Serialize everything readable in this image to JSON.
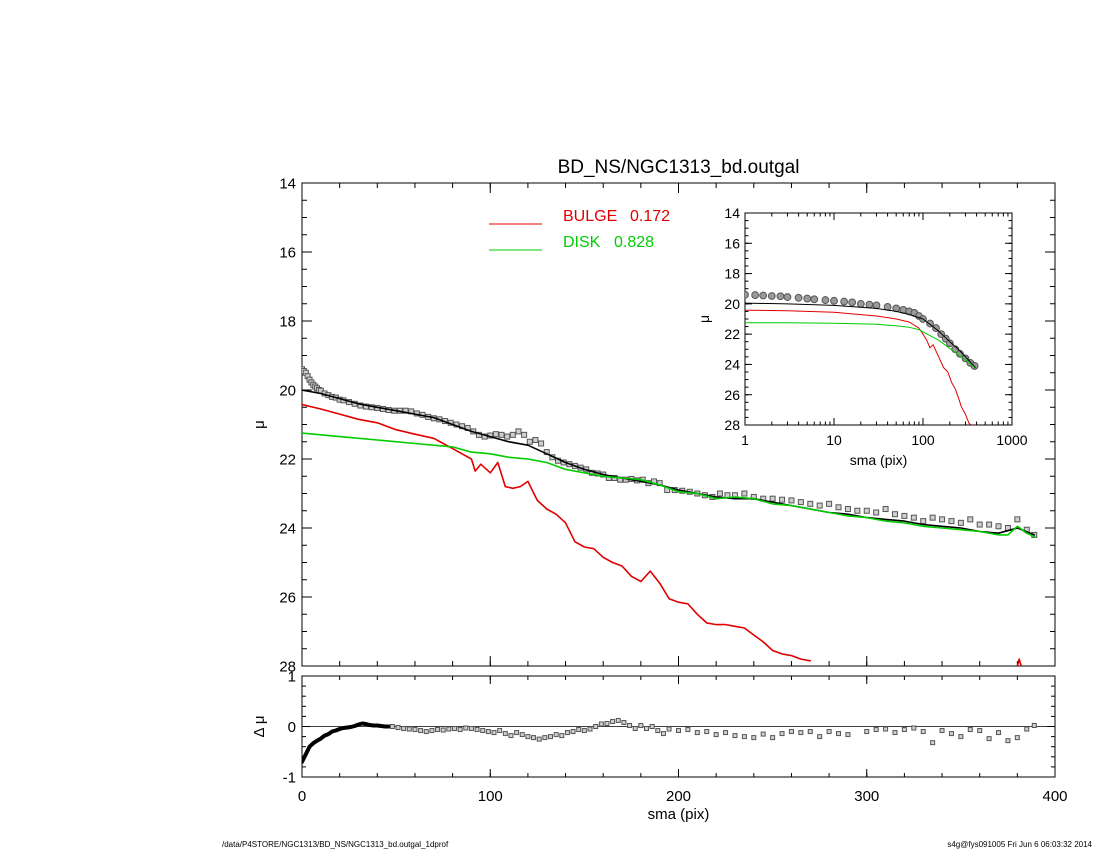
{
  "chart_data": [
    {
      "name": "main",
      "type": "line",
      "title": "BD_NS/NGC1313_bd.outgal",
      "xlabel": "",
      "ylabel": "μ",
      "xlim": [
        0,
        400
      ],
      "ylim": [
        28,
        14
      ],
      "y_inverted": true,
      "xticks": [
        0,
        100,
        200,
        300,
        400
      ],
      "yticks": [
        14,
        16,
        18,
        20,
        22,
        24,
        26,
        28
      ],
      "legend": [
        {
          "label": "BULGE",
          "value": "0.172",
          "color": "#e00000"
        },
        {
          "label": "DISK",
          "value": "0.828",
          "color": "#00cc00"
        }
      ],
      "series": [
        {
          "name": "observed",
          "style": "squares",
          "color": "#555555",
          "x": [
            0,
            1,
            2,
            3,
            4,
            5,
            6,
            7,
            8,
            9,
            10,
            12,
            14,
            16,
            18,
            20,
            22,
            25,
            28,
            31,
            34,
            37,
            40,
            43,
            46,
            49,
            52,
            55,
            58,
            61,
            64,
            67,
            70,
            73,
            76,
            79,
            82,
            85,
            88,
            91,
            94,
            97,
            100,
            103,
            106,
            109,
            112,
            115,
            118,
            121,
            124,
            127,
            130,
            133,
            136,
            139,
            142,
            145,
            148,
            151,
            154,
            157,
            160,
            163,
            166,
            169,
            172,
            175,
            178,
            181,
            184,
            187,
            190,
            194,
            198,
            202,
            206,
            210,
            214,
            218,
            222,
            226,
            230,
            235,
            240,
            245,
            250,
            255,
            260,
            265,
            270,
            275,
            280,
            285,
            290,
            295,
            300,
            305,
            310,
            315,
            320,
            325,
            330,
            335,
            340,
            345,
            350,
            355,
            360,
            365,
            370,
            375,
            380,
            385,
            389
          ],
          "y": [
            19.4,
            19.45,
            19.5,
            19.6,
            19.7,
            19.78,
            19.85,
            19.9,
            19.95,
            20.0,
            20.02,
            20.1,
            20.15,
            20.2,
            20.22,
            20.28,
            20.3,
            20.35,
            20.4,
            20.45,
            20.48,
            20.5,
            20.52,
            20.55,
            20.58,
            20.6,
            20.6,
            20.6,
            20.62,
            20.68,
            20.72,
            20.78,
            20.82,
            20.85,
            20.9,
            20.95,
            21.0,
            21.05,
            21.1,
            21.2,
            21.3,
            21.35,
            21.32,
            21.28,
            21.3,
            21.35,
            21.3,
            21.2,
            21.3,
            21.5,
            21.45,
            21.55,
            21.8,
            21.95,
            22.05,
            22.1,
            22.15,
            22.2,
            22.25,
            22.3,
            22.4,
            22.42,
            22.45,
            22.55,
            22.55,
            22.6,
            22.6,
            22.58,
            22.62,
            22.6,
            22.7,
            22.65,
            22.7,
            22.9,
            22.9,
            22.92,
            22.95,
            23.0,
            23.05,
            23.1,
            23.0,
            23.05,
            23.05,
            23.0,
            23.1,
            23.15,
            23.15,
            23.18,
            23.2,
            23.25,
            23.3,
            23.35,
            23.3,
            23.4,
            23.45,
            23.5,
            23.5,
            23.55,
            23.45,
            23.6,
            23.65,
            23.7,
            23.8,
            23.7,
            23.75,
            23.8,
            23.85,
            23.75,
            23.9,
            23.9,
            23.95,
            24.0,
            23.75,
            24.05,
            24.2
          ]
        },
        {
          "name": "model_total",
          "style": "line",
          "color": "#000000",
          "x": [
            0,
            10,
            20,
            30,
            40,
            50,
            60,
            70,
            80,
            90,
            100,
            110,
            120,
            130,
            140,
            150,
            160,
            170,
            180,
            190,
            200,
            210,
            220,
            230,
            240,
            250,
            260,
            270,
            280,
            290,
            300,
            310,
            320,
            330,
            340,
            350,
            360,
            370,
            380,
            389
          ],
          "y": [
            20.0,
            20.1,
            20.25,
            20.4,
            20.5,
            20.6,
            20.7,
            20.8,
            21.0,
            21.2,
            21.35,
            21.5,
            21.6,
            21.85,
            22.1,
            22.3,
            22.45,
            22.55,
            22.65,
            22.75,
            22.9,
            23.0,
            23.1,
            23.15,
            23.15,
            23.25,
            23.35,
            23.45,
            23.55,
            23.6,
            23.7,
            23.75,
            23.8,
            23.9,
            23.95,
            24.0,
            24.1,
            24.15,
            24.0,
            24.2
          ]
        },
        {
          "name": "bulge",
          "style": "line",
          "color": "#e00000",
          "x": [
            0,
            10,
            20,
            30,
            40,
            50,
            60,
            70,
            75,
            80,
            85,
            90,
            92,
            95,
            100,
            104,
            108,
            112,
            116,
            120,
            125,
            130,
            135,
            140,
            145,
            150,
            155,
            160,
            165,
            170,
            175,
            180,
            185,
            190,
            195,
            200,
            205,
            210,
            215,
            220,
            225,
            230,
            235,
            240,
            245,
            250,
            255,
            260,
            265,
            270
          ],
          "y": [
            20.42,
            20.55,
            20.7,
            20.85,
            20.95,
            21.15,
            21.28,
            21.4,
            21.55,
            21.7,
            21.85,
            22.0,
            22.35,
            22.15,
            22.4,
            22.1,
            22.8,
            22.85,
            22.8,
            22.65,
            23.2,
            23.45,
            23.6,
            23.85,
            24.4,
            24.55,
            24.6,
            24.85,
            25.0,
            25.1,
            25.4,
            25.55,
            25.25,
            25.6,
            26.05,
            26.15,
            26.2,
            26.5,
            26.75,
            26.8,
            26.8,
            26.85,
            26.9,
            27.1,
            27.3,
            27.55,
            27.65,
            27.7,
            27.8,
            27.85
          ]
        },
        {
          "name": "bulge_tail",
          "style": "line",
          "color": "#e00000",
          "x": [
            380,
            381,
            382
          ],
          "y": [
            28.0,
            27.8,
            28.0
          ]
        },
        {
          "name": "disk",
          "style": "line",
          "color": "#00cc00",
          "x": [
            0,
            20,
            40,
            60,
            80,
            90,
            100,
            110,
            120,
            130,
            140,
            150,
            160,
            170,
            180,
            190,
            200,
            210,
            220,
            230,
            240,
            250,
            260,
            270,
            280,
            290,
            300,
            310,
            320,
            330,
            340,
            350,
            360,
            370,
            375,
            380,
            385,
            389
          ],
          "y": [
            21.25,
            21.35,
            21.45,
            21.55,
            21.65,
            21.8,
            21.85,
            21.95,
            22.0,
            22.1,
            22.3,
            22.4,
            22.5,
            22.55,
            22.6,
            22.75,
            22.95,
            23.0,
            23.15,
            23.1,
            23.15,
            23.3,
            23.35,
            23.45,
            23.55,
            23.65,
            23.7,
            23.8,
            23.85,
            23.95,
            24.0,
            24.05,
            24.1,
            24.2,
            24.2,
            23.95,
            24.15,
            24.25
          ]
        }
      ]
    },
    {
      "name": "residual",
      "type": "scatter",
      "xlabel": "sma (pix)",
      "ylabel": "Δ μ",
      "xlim": [
        0,
        400
      ],
      "ylim": [
        -1,
        1
      ],
      "xticks": [
        0,
        100,
        200,
        300,
        400
      ],
      "yticks": [
        -1,
        0,
        1
      ],
      "zero_line": true,
      "series": [
        {
          "name": "residual_thick",
          "style": "thick-line",
          "color": "#000000",
          "x": [
            0,
            2,
            4,
            6,
            8,
            10,
            12,
            14,
            16,
            18,
            20,
            22,
            24,
            26,
            28,
            30,
            32,
            34,
            36,
            38,
            40,
            42,
            44,
            46
          ],
          "y": [
            -0.7,
            -0.55,
            -0.4,
            -0.33,
            -0.28,
            -0.24,
            -0.18,
            -0.15,
            -0.1,
            -0.08,
            -0.05,
            -0.03,
            -0.02,
            -0.01,
            0.01,
            0.04,
            0.06,
            0.05,
            0.03,
            0.02,
            0.02,
            0.01,
            0.0,
            0.0
          ]
        },
        {
          "name": "residual_points",
          "style": "squares",
          "color": "#555555",
          "x": [
            48,
            51,
            54,
            57,
            60,
            63,
            66,
            69,
            72,
            75,
            78,
            81,
            84,
            87,
            90,
            93,
            96,
            99,
            102,
            105,
            108,
            111,
            114,
            117,
            120,
            123,
            126,
            129,
            132,
            135,
            138,
            141,
            144,
            147,
            150,
            153,
            156,
            159,
            162,
            165,
            168,
            171,
            174,
            177,
            180,
            183,
            186,
            189,
            192,
            195,
            200,
            205,
            210,
            215,
            220,
            225,
            230,
            235,
            240,
            245,
            250,
            255,
            260,
            265,
            270,
            275,
            280,
            285,
            290,
            300,
            305,
            310,
            315,
            320,
            325,
            330,
            335,
            340,
            345,
            350,
            355,
            360,
            365,
            370,
            375,
            380,
            385,
            389
          ],
          "y": [
            0.0,
            -0.02,
            -0.04,
            -0.05,
            -0.06,
            -0.08,
            -0.1,
            -0.08,
            -0.06,
            -0.07,
            -0.05,
            -0.04,
            -0.06,
            -0.03,
            -0.04,
            -0.06,
            -0.08,
            -0.1,
            -0.12,
            -0.08,
            -0.14,
            -0.18,
            -0.12,
            -0.16,
            -0.2,
            -0.22,
            -0.25,
            -0.22,
            -0.2,
            -0.16,
            -0.18,
            -0.12,
            -0.1,
            -0.06,
            -0.08,
            -0.05,
            0.0,
            0.05,
            0.06,
            0.1,
            0.12,
            0.08,
            0.02,
            -0.04,
            0.02,
            -0.04,
            0.0,
            -0.08,
            -0.14,
            -0.05,
            -0.08,
            -0.06,
            -0.12,
            -0.1,
            -0.16,
            -0.12,
            -0.18,
            -0.2,
            -0.22,
            -0.15,
            -0.22,
            -0.14,
            -0.1,
            -0.12,
            -0.1,
            -0.2,
            -0.1,
            -0.14,
            -0.16,
            -0.1,
            -0.06,
            -0.05,
            -0.12,
            -0.06,
            -0.03,
            -0.1,
            -0.32,
            -0.08,
            -0.14,
            -0.2,
            -0.06,
            -0.08,
            -0.24,
            -0.12,
            -0.28,
            -0.22,
            -0.05,
            0.02
          ]
        }
      ]
    },
    {
      "name": "inset",
      "type": "line",
      "xscale": "log",
      "xlabel": "sma (pix)",
      "ylabel": "μ",
      "xlim": [
        1,
        1000
      ],
      "ylim": [
        28,
        14
      ],
      "y_inverted": true,
      "xticks": [
        1,
        10,
        100,
        1000
      ],
      "yticks": [
        14,
        16,
        18,
        20,
        22,
        24,
        26,
        28
      ],
      "series": [
        {
          "name": "observed",
          "style": "circles",
          "color": "#555555",
          "x": [
            1,
            1.3,
            1.6,
            2,
            2.5,
            3,
            4,
            5,
            6,
            8,
            10,
            13,
            16,
            20,
            25,
            30,
            40,
            50,
            60,
            70,
            80,
            90,
            100,
            120,
            140,
            160,
            180,
            200,
            230,
            260,
            300,
            340,
            380
          ],
          "y": [
            19.4,
            19.42,
            19.45,
            19.48,
            19.5,
            19.55,
            19.6,
            19.65,
            19.7,
            19.75,
            19.8,
            19.85,
            19.9,
            20.0,
            20.05,
            20.1,
            20.2,
            20.3,
            20.4,
            20.5,
            20.6,
            20.8,
            21.0,
            21.3,
            21.6,
            22.0,
            22.3,
            22.6,
            23.0,
            23.3,
            23.6,
            23.9,
            24.1
          ]
        },
        {
          "name": "model_total",
          "style": "line",
          "color": "#000000",
          "x": [
            1,
            3,
            10,
            30,
            50,
            70,
            100,
            150,
            200,
            250,
            300,
            389
          ],
          "y": [
            19.95,
            20.0,
            20.1,
            20.3,
            20.5,
            20.7,
            21.0,
            21.8,
            22.5,
            23.0,
            23.5,
            24.2
          ]
        },
        {
          "name": "bulge",
          "style": "line",
          "color": "#e00000",
          "x": [
            1,
            3,
            10,
            30,
            50,
            70,
            90,
            100,
            110,
            120,
            130,
            150,
            170,
            190,
            210,
            230,
            250,
            270,
            300,
            330,
            350
          ],
          "y": [
            20.42,
            20.45,
            20.55,
            20.8,
            21.0,
            21.2,
            21.6,
            22.0,
            22.4,
            22.9,
            22.7,
            23.5,
            24.2,
            24.5,
            25.2,
            25.6,
            26.2,
            26.8,
            27.3,
            27.9,
            28.0
          ]
        },
        {
          "name": "disk",
          "style": "line",
          "color": "#00cc00",
          "x": [
            1,
            3,
            10,
            30,
            50,
            70,
            90,
            100,
            150,
            200,
            300,
            389
          ],
          "y": [
            21.25,
            21.25,
            21.28,
            21.35,
            21.45,
            21.55,
            21.7,
            21.85,
            22.4,
            22.95,
            23.7,
            24.25
          ]
        }
      ]
    }
  ],
  "footer": {
    "left": "/data/P4STORE/NGC1313/BD_NS/NGC1313_bd.outgal_1dprof",
    "right": "s4g@fys091005  Fri Jun  6 06:03:32 2014"
  }
}
